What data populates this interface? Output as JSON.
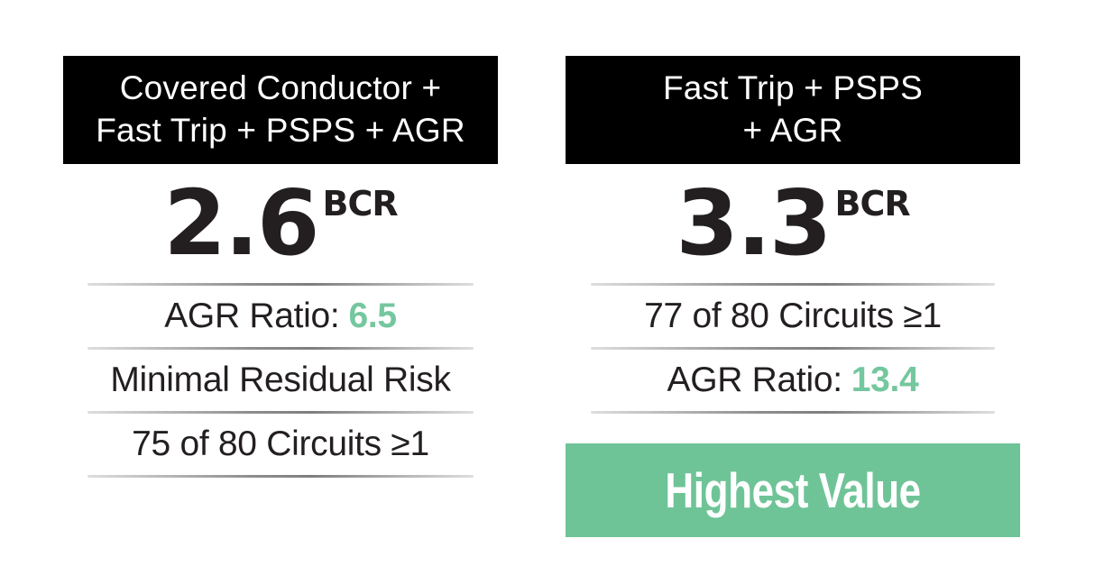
{
  "colors": {
    "page_bg": "#FFFFFF",
    "header_bg": "#000000",
    "header_text": "#FFFFFF",
    "body_text": "#231F20",
    "accent_green": "#74C79E",
    "banner_green": "#6FC497",
    "separator_gray": "#8E8E8E"
  },
  "cards": [
    {
      "title_line1": "Covered Conductor +",
      "title_line2": "Fast Trip + PSPS + AGR",
      "bcr_value": "2.6",
      "bcr_unit": "BCR",
      "rows": [
        {
          "label": "AGR Ratio:",
          "value": "6.5"
        },
        {
          "text": "Minimal Residual Risk"
        },
        {
          "text": "75 of 80 Circuits ≥1"
        }
      ]
    },
    {
      "title_line1": "Fast Trip + PSPS",
      "title_line2": "+ AGR",
      "bcr_value": "3.3",
      "bcr_unit": "BCR",
      "rows": [
        {
          "text": "77 of 80 Circuits ≥1"
        },
        {
          "label": "AGR Ratio:",
          "value": "13.4"
        }
      ],
      "banner_label": "Highest Value"
    }
  ]
}
